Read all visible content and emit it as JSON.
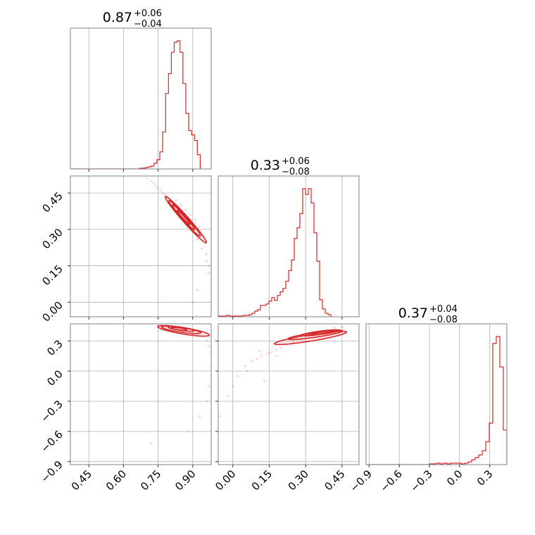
{
  "chart_data": {
    "type": "corner",
    "color": "#d62728",
    "grid": true,
    "parameters": [
      {
        "range": [
          0.37,
          0.98
        ],
        "ticks": [
          "0.45",
          "0.60",
          "0.75",
          "0.90"
        ],
        "tick_values": [
          0.45,
          0.6,
          0.75,
          0.9
        ],
        "title": {
          "value": "0.87",
          "plus": "+0.06",
          "minus": "−0.04"
        },
        "hist": {
          "bin_start": 0.37,
          "bin_width": 0.0125,
          "counts": [
            0,
            0,
            0,
            0,
            0,
            0,
            0,
            0,
            0,
            0,
            0,
            0,
            0,
            0,
            0,
            0,
            0,
            0,
            0,
            0,
            0,
            0,
            0,
            0,
            0.5,
            0.5,
            1,
            1.5,
            2,
            4,
            6.5,
            12,
            26,
            53,
            67,
            82,
            89,
            90,
            82,
            60,
            39,
            27,
            24,
            20,
            10
          ]
        }
      },
      {
        "range": [
          -0.06,
          0.52
        ],
        "ticks": [
          "0.00",
          "0.15",
          "0.30",
          "0.45"
        ],
        "tick_values": [
          0.0,
          0.15,
          0.3,
          0.45
        ],
        "title": {
          "value": "0.33",
          "plus": "+0.06",
          "minus": "−0.08"
        },
        "hist": {
          "bin_start": -0.06,
          "bin_width": 0.0116,
          "counts": [
            1,
            1,
            1,
            2,
            1,
            1,
            1,
            1,
            1,
            2,
            2,
            3,
            5,
            8,
            10,
            16,
            16,
            18,
            22,
            27,
            23,
            30,
            35,
            40,
            50,
            65,
            80,
            110,
            125,
            145,
            180,
            172,
            180,
            160,
            118,
            78,
            24,
            11,
            5,
            3
          ]
        }
      },
      {
        "range": [
          -0.93,
          0.47
        ],
        "ticks": [
          "−0.9",
          "−0.6",
          "−0.3",
          "0.0",
          "0.3"
        ],
        "tick_values": [
          -0.9,
          -0.6,
          -0.3,
          0.0,
          0.3
        ],
        "title": {
          "value": "0.37",
          "plus": "+0.04",
          "minus": "−0.08"
        },
        "hist": {
          "bin_start": -0.93,
          "bin_width": 0.035,
          "counts": [
            0,
            0,
            0,
            0,
            0,
            0,
            0,
            0,
            0,
            0,
            0,
            0,
            0,
            0,
            0,
            0,
            0,
            0,
            1,
            1,
            2,
            1,
            2,
            1,
            2,
            2,
            2,
            1,
            2,
            4,
            7,
            10,
            14,
            20,
            33,
            60,
            175,
            185,
            141,
            50
          ]
        }
      }
    ],
    "scatter": {
      "p1_p0": {
        "x": [
          0.7,
          0.72,
          0.73,
          0.74,
          0.75,
          0.76,
          0.77,
          0.78,
          0.79,
          0.8,
          0.81,
          0.82,
          0.84,
          0.86,
          0.88,
          0.9,
          0.92,
          0.94,
          0.96,
          0.97,
          0.98,
          0.95,
          0.93,
          0.91,
          0.89,
          0.87,
          0.85,
          0.83,
          0.92,
          0.96,
          0.97,
          0.9
        ],
        "y": [
          0.51,
          0.5,
          0.49,
          0.48,
          0.47,
          0.46,
          0.45,
          0.44,
          0.43,
          0.42,
          0.41,
          0.4,
          0.38,
          0.35,
          0.32,
          0.29,
          0.26,
          0.22,
          0.17,
          0.12,
          0.08,
          0.27,
          0.31,
          0.34,
          0.36,
          0.38,
          0.4,
          0.42,
          0.05,
          0.2,
          0.15,
          0.0
        ]
      },
      "p2_p0": {
        "x": [
          0.76,
          0.78,
          0.8,
          0.82,
          0.84,
          0.86,
          0.88,
          0.9,
          0.92,
          0.94,
          0.96,
          0.97,
          0.98,
          0.98,
          0.98,
          0.97,
          0.96,
          0.93,
          0.88,
          0.72,
          0.77,
          0.81
        ],
        "y": [
          0.45,
          0.45,
          0.45,
          0.44,
          0.44,
          0.43,
          0.42,
          0.4,
          0.38,
          0.35,
          0.3,
          0.25,
          0.18,
          0.05,
          -0.05,
          -0.15,
          -0.3,
          -0.45,
          -0.6,
          -0.72,
          0.44,
          0.44
        ]
      },
      "p2_p1": {
        "x": [
          0.12,
          0.14,
          0.16,
          0.18,
          0.2,
          0.22,
          0.25,
          0.28,
          0.3,
          0.33,
          0.36,
          0.39,
          0.42,
          0.45,
          0.1,
          0.08,
          0.05,
          0.02,
          0.0,
          -0.02,
          -0.05,
          0.15,
          0.18,
          0.11,
          0.06,
          0.13
        ],
        "y": [
          0.15,
          0.17,
          0.19,
          0.21,
          0.23,
          0.26,
          0.29,
          0.32,
          0.35,
          0.37,
          0.39,
          0.41,
          0.43,
          0.44,
          0.12,
          0.1,
          0.05,
          -0.05,
          -0.15,
          -0.25,
          -0.45,
          0.18,
          0.15,
          0.2,
          0.0,
          -0.1
        ]
      }
    },
    "contours": {
      "p1_p0": [
        {
          "cx": 0.87,
          "cy": 0.34,
          "angle_deg": -47,
          "rx": 0.13,
          "ry": 0.013
        },
        {
          "cx": 0.865,
          "cy": 0.345,
          "angle_deg": -47,
          "rx": 0.1,
          "ry": 0.01
        },
        {
          "cx": 0.86,
          "cy": 0.35,
          "angle_deg": -47,
          "rx": 0.07,
          "ry": 0.007
        },
        {
          "cx": 0.86,
          "cy": 0.35,
          "angle_deg": -47,
          "rx": 0.04,
          "ry": 0.004
        }
      ],
      "p2_p0": [
        {
          "cx": 0.86,
          "cy": 0.4,
          "angle_deg": -22,
          "rx": 0.12,
          "ry": 0.03
        },
        {
          "cx": 0.85,
          "cy": 0.41,
          "angle_deg": -20,
          "rx": 0.09,
          "ry": 0.022
        },
        {
          "cx": 0.85,
          "cy": 0.42,
          "angle_deg": -18,
          "rx": 0.06,
          "ry": 0.015
        },
        {
          "cx": 0.84,
          "cy": 0.42,
          "angle_deg": -16,
          "rx": 0.035,
          "ry": 0.009
        }
      ],
      "p2_p1": [
        {
          "cx": 0.32,
          "cy": 0.33,
          "angle_deg": 22,
          "rx": 0.16,
          "ry": 0.03
        },
        {
          "cx": 0.34,
          "cy": 0.36,
          "angle_deg": 20,
          "rx": 0.12,
          "ry": 0.022
        },
        {
          "cx": 0.36,
          "cy": 0.38,
          "angle_deg": 18,
          "rx": 0.085,
          "ry": 0.016
        },
        {
          "cx": 0.37,
          "cy": 0.39,
          "angle_deg": 16,
          "rx": 0.05,
          "ry": 0.01
        }
      ]
    }
  }
}
